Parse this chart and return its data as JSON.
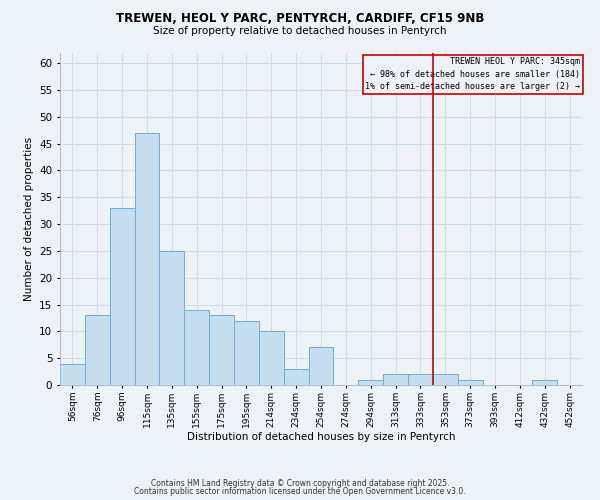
{
  "title_line1": "TREWEN, HEOL Y PARC, PENTYRCH, CARDIFF, CF15 9NB",
  "title_line2": "Size of property relative to detached houses in Pentyrch",
  "xlabel": "Distribution of detached houses by size in Pentyrch",
  "ylabel": "Number of detached properties",
  "categories": [
    "56sqm",
    "76sqm",
    "96sqm",
    "115sqm",
    "135sqm",
    "155sqm",
    "175sqm",
    "195sqm",
    "214sqm",
    "234sqm",
    "254sqm",
    "274sqm",
    "294sqm",
    "313sqm",
    "333sqm",
    "353sqm",
    "373sqm",
    "393sqm",
    "412sqm",
    "432sqm",
    "452sqm"
  ],
  "values": [
    4,
    13,
    33,
    47,
    25,
    14,
    13,
    12,
    10,
    3,
    7,
    0,
    1,
    2,
    2,
    2,
    1,
    0,
    0,
    1,
    0
  ],
  "bar_color": "#c5dff0",
  "bar_edge_color": "#6eadd4",
  "grid_color": "#d0dde8",
  "background_color": "#edf2f7",
  "vline_x_index": 15,
  "vline_color": "#cc0000",
  "annotation_title": "TREWEN HEOL Y PARC: 345sqm",
  "annotation_line2": "← 98% of detached houses are smaller (184)",
  "annotation_line3": "1% of semi-detached houses are larger (2) →",
  "annotation_box_color": "#cc0000",
  "ylim": [
    0,
    62
  ],
  "yticks": [
    0,
    5,
    10,
    15,
    20,
    25,
    30,
    35,
    40,
    45,
    50,
    55,
    60
  ],
  "footer1": "Contains HM Land Registry data © Crown copyright and database right 2025.",
  "footer2": "Contains public sector information licensed under the Open Government Licence v3.0."
}
